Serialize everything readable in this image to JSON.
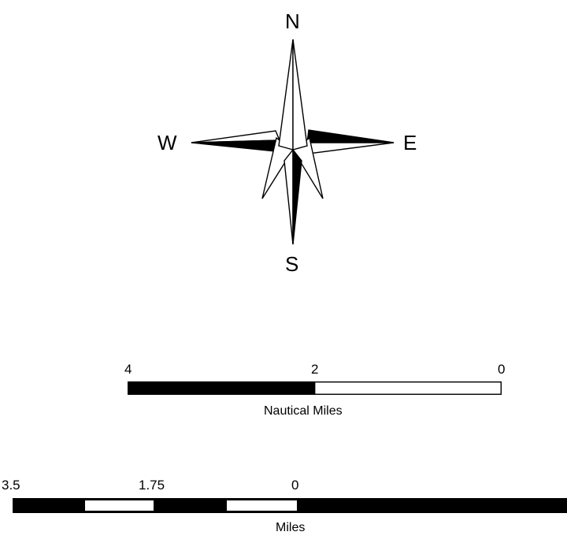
{
  "compass": {
    "north": "N",
    "south": "S",
    "east": "E",
    "west": "W"
  },
  "nautical_scale": {
    "ticks": [
      "4",
      "2",
      "0"
    ],
    "unit_label": "Nautical Miles"
  },
  "miles_scale": {
    "ticks": [
      "3.5",
      "1.75",
      "0"
    ],
    "unit_label": "Miles"
  },
  "colors": {
    "ink": "#000000",
    "paper": "#ffffff"
  }
}
